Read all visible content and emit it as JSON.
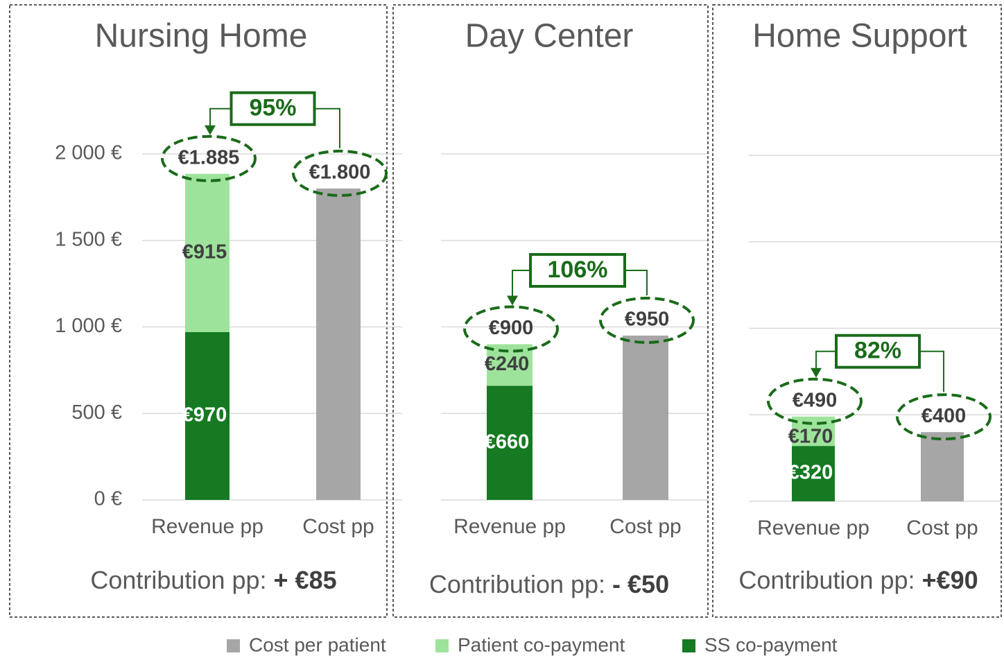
{
  "chart_data": [
    {
      "type": "bar",
      "stacked": true,
      "title": "Nursing Home",
      "categories": [
        "Revenue pp",
        "Cost pp"
      ],
      "series": [
        {
          "name": "SS co-payment",
          "color": "#157a22",
          "values": [
            970,
            null
          ],
          "value_labels": [
            "€970",
            null
          ]
        },
        {
          "name": "Patient co-payment",
          "color": "#9ee39c",
          "values": [
            915,
            null
          ],
          "value_labels": [
            "€915",
            null
          ]
        },
        {
          "name": "Cost per patient",
          "color": "#a6a6a6",
          "values": [
            null,
            1800
          ],
          "value_labels": [
            null,
            "€1.800"
          ]
        }
      ],
      "total_label": "€1.885",
      "ratio_label": "95%",
      "contribution_label": "Contribution pp:",
      "contribution": "+ €85",
      "ylim": [
        0,
        2000
      ],
      "yticks": [
        {
          "value": 0,
          "label": "0 €"
        },
        {
          "value": 500,
          "label": "500 €"
        },
        {
          "value": 1000,
          "label": "1 000 €"
        },
        {
          "value": 1500,
          "label": "1 500 €"
        },
        {
          "value": 2000,
          "label": "2 000 €"
        }
      ],
      "grid": true
    },
    {
      "type": "bar",
      "stacked": true,
      "title": "Day Center",
      "categories": [
        "Revenue pp",
        "Cost pp"
      ],
      "series": [
        {
          "name": "SS co-payment",
          "color": "#157a22",
          "values": [
            660,
            null
          ],
          "value_labels": [
            "€660",
            null
          ]
        },
        {
          "name": "Patient co-payment",
          "color": "#9ee39c",
          "values": [
            240,
            null
          ],
          "value_labels": [
            "€240",
            null
          ]
        },
        {
          "name": "Cost per patient",
          "color": "#a6a6a6",
          "values": [
            null,
            950
          ],
          "value_labels": [
            null,
            "€950"
          ]
        }
      ],
      "total_label": "€900",
      "ratio_label": "106%",
      "contribution_label": "Contribution pp:",
      "contribution": "- €50",
      "ylim": [
        0,
        2000
      ],
      "grid": true
    },
    {
      "type": "bar",
      "stacked": true,
      "title": "Home Support",
      "categories": [
        "Revenue pp",
        "Cost pp"
      ],
      "series": [
        {
          "name": "SS co-payment",
          "color": "#157a22",
          "values": [
            320,
            null
          ],
          "value_labels": [
            "€320",
            null
          ]
        },
        {
          "name": "Patient co-payment",
          "color": "#9ee39c",
          "values": [
            170,
            null
          ],
          "value_labels": [
            "€170",
            null
          ]
        },
        {
          "name": "Cost per patient",
          "color": "#a6a6a6",
          "values": [
            null,
            400
          ],
          "value_labels": [
            null,
            "€400"
          ]
        }
      ],
      "total_label": "€490",
      "ratio_label": "82%",
      "contribution_label": "Contribution pp:",
      "contribution": "+€90",
      "ylim": [
        0,
        2000
      ],
      "grid": true
    }
  ]
}
